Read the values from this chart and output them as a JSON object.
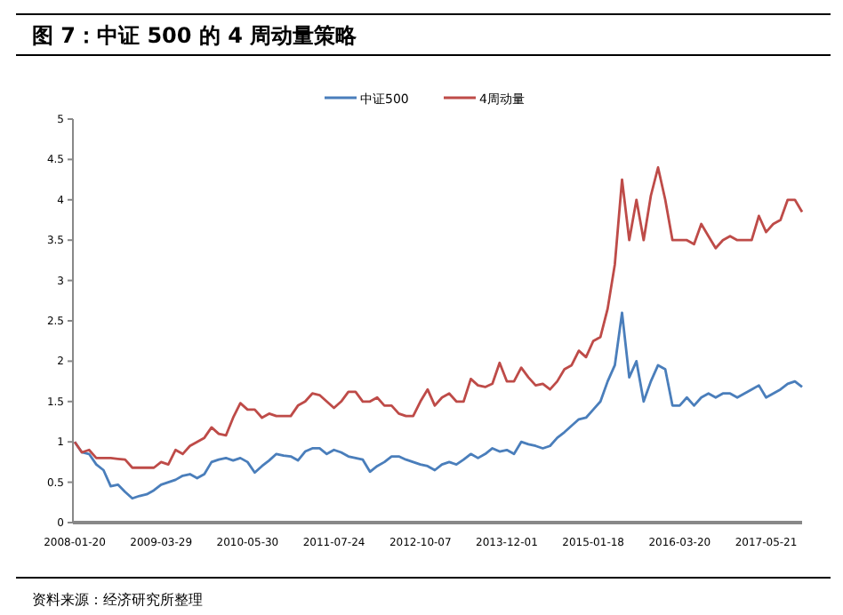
{
  "chart_data": {
    "type": "line",
    "title": "图 7：中证 500 的 4 周动量策略",
    "annotations": [
      "资料来源：经济研究所整理"
    ],
    "categories": [
      "2008-01-20",
      null,
      null,
      null,
      null,
      null,
      null,
      null,
      null,
      null,
      null,
      null,
      "2009-03-29",
      null,
      null,
      null,
      null,
      null,
      null,
      null,
      null,
      null,
      null,
      null,
      "2010-05-30",
      null,
      null,
      null,
      null,
      null,
      null,
      null,
      null,
      null,
      null,
      null,
      "2011-07-24",
      null,
      null,
      null,
      null,
      null,
      null,
      null,
      null,
      null,
      null,
      null,
      "2012-10-07",
      null,
      null,
      null,
      null,
      null,
      null,
      null,
      null,
      null,
      null,
      null,
      "2013-12-01",
      null,
      null,
      null,
      null,
      null,
      null,
      null,
      null,
      null,
      null,
      null,
      "2015-01-18",
      null,
      null,
      null,
      null,
      null,
      null,
      null,
      null,
      null,
      null,
      null,
      "2016-03-20",
      null,
      null,
      null,
      null,
      null,
      null,
      null,
      null,
      null,
      null,
      null,
      "2017-05-21",
      null,
      null,
      null,
      null,
      null
    ],
    "ylim": [
      0,
      5
    ],
    "yticks": [
      0,
      0.5,
      1,
      1.5,
      2,
      2.5,
      3,
      3.5,
      4,
      4.5,
      5
    ],
    "grid": false,
    "legend": "top",
    "series": [
      {
        "name": "中证500",
        "color": "#4a7ebb",
        "values": [
          1.0,
          0.87,
          0.85,
          0.72,
          0.65,
          0.45,
          0.47,
          0.38,
          0.3,
          0.33,
          0.35,
          0.4,
          0.47,
          0.5,
          0.53,
          0.58,
          0.6,
          0.55,
          0.6,
          0.75,
          0.78,
          0.8,
          0.77,
          0.8,
          0.75,
          0.62,
          0.7,
          0.77,
          0.85,
          0.83,
          0.82,
          0.77,
          0.88,
          0.92,
          0.92,
          0.85,
          0.9,
          0.87,
          0.82,
          0.8,
          0.78,
          0.63,
          0.7,
          0.75,
          0.82,
          0.82,
          0.78,
          0.75,
          0.72,
          0.7,
          0.65,
          0.72,
          0.75,
          0.72,
          0.78,
          0.85,
          0.8,
          0.85,
          0.92,
          0.88,
          0.9,
          0.85,
          1.0,
          0.97,
          0.95,
          0.92,
          0.95,
          1.05,
          1.12,
          1.2,
          1.28,
          1.3,
          1.4,
          1.5,
          1.75,
          1.95,
          2.6,
          1.8,
          2.0,
          1.5,
          1.75,
          1.95,
          1.9,
          1.45,
          1.45,
          1.55,
          1.45,
          1.55,
          1.6,
          1.55,
          1.6,
          1.6,
          1.55,
          1.6,
          1.65,
          1.7,
          1.55,
          1.6,
          1.65,
          1.72,
          1.75,
          1.68
        ]
      },
      {
        "name": "4周动量",
        "color": "#be4b48",
        "values": [
          1.0,
          0.87,
          0.9,
          0.8,
          0.8,
          0.8,
          0.79,
          0.78,
          0.68,
          0.68,
          0.68,
          0.68,
          0.75,
          0.72,
          0.9,
          0.85,
          0.95,
          1.0,
          1.05,
          1.18,
          1.1,
          1.08,
          1.3,
          1.48,
          1.4,
          1.4,
          1.3,
          1.35,
          1.32,
          1.32,
          1.32,
          1.45,
          1.5,
          1.6,
          1.58,
          1.5,
          1.42,
          1.5,
          1.62,
          1.62,
          1.5,
          1.5,
          1.55,
          1.45,
          1.45,
          1.35,
          1.32,
          1.32,
          1.5,
          1.65,
          1.45,
          1.55,
          1.6,
          1.5,
          1.5,
          1.78,
          1.7,
          1.68,
          1.72,
          1.98,
          1.75,
          1.75,
          1.92,
          1.8,
          1.7,
          1.72,
          1.65,
          1.75,
          1.9,
          1.95,
          2.13,
          2.05,
          2.25,
          2.3,
          2.65,
          3.2,
          4.25,
          3.5,
          4.0,
          3.5,
          4.05,
          4.4,
          4.0,
          3.5,
          3.5,
          3.5,
          3.45,
          3.7,
          3.55,
          3.4,
          3.5,
          3.55,
          3.5,
          3.5,
          3.5,
          3.8,
          3.6,
          3.7,
          3.75,
          4.0,
          4.0,
          3.85
        ]
      }
    ]
  }
}
